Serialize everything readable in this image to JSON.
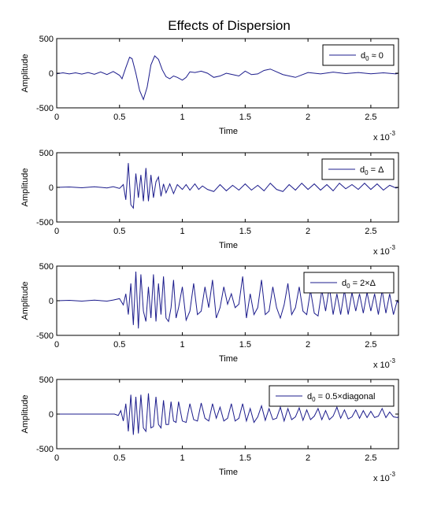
{
  "title": "Effects of Dispersion",
  "colors": {
    "line": "#1c1c8c",
    "axes": "#000000",
    "background": "#ffffff"
  },
  "chart_data": [
    {
      "type": "line",
      "xlabel": "Time",
      "ylabel": "Amplitude",
      "x_multiplier": "x 10",
      "x_exponent": "-3",
      "xlim": [
        0,
        0.00272
      ],
      "ylim": [
        -500,
        500
      ],
      "xtick_labels": [
        "0",
        "0.5",
        "1",
        "1.5",
        "2",
        "2.5"
      ],
      "ytick_labels": [
        "500",
        "0",
        "-500"
      ],
      "legend": {
        "label": "d",
        "sub": "0",
        "rest": " ≈ 0",
        "placement": "top-right"
      },
      "series": [
        {
          "name": "d0 ≈ 0",
          "x": [
            0,
            5e-05,
            0.0001,
            0.00015,
            0.0002,
            0.00025,
            0.0003,
            0.00035,
            0.0004,
            0.00045,
            0.0005,
            0.00052,
            0.00055,
            0.00058,
            0.0006,
            0.00063,
            0.00066,
            0.00069,
            0.00072,
            0.00075,
            0.00078,
            0.00081,
            0.00084,
            0.00087,
            0.0009,
            0.00093,
            0.00096,
            0.001,
            0.00103,
            0.00106,
            0.0011,
            0.00115,
            0.0012,
            0.00125,
            0.0013,
            0.00135,
            0.0014,
            0.00145,
            0.0015,
            0.00155,
            0.0016,
            0.00165,
            0.0017,
            0.0018,
            0.0019,
            0.002,
            0.0021,
            0.0022,
            0.0023,
            0.0024,
            0.0025,
            0.0026,
            0.0027,
            0.00272
          ],
          "y": [
            -8,
            5,
            -10,
            6,
            -12,
            10,
            -15,
            18,
            -20,
            25,
            -30,
            -80,
            80,
            230,
            210,
            0,
            -250,
            -380,
            -200,
            120,
            250,
            200,
            50,
            -50,
            -80,
            -40,
            -60,
            -100,
            -60,
            20,
            10,
            30,
            0,
            -60,
            -40,
            0,
            -20,
            -40,
            30,
            -20,
            -10,
            40,
            60,
            -20,
            -60,
            10,
            -10,
            15,
            -5,
            10,
            -8,
            5,
            -10,
            0
          ]
        }
      ]
    },
    {
      "type": "line",
      "xlabel": "Time",
      "ylabel": "Amplitude",
      "x_multiplier": "x 10",
      "x_exponent": "-3",
      "xlim": [
        0,
        0.00272
      ],
      "ylim": [
        -500,
        500
      ],
      "xtick_labels": [
        "0",
        "0.5",
        "1",
        "1.5",
        "2",
        "2.5"
      ],
      "ytick_labels": [
        "500",
        "0",
        "-500"
      ],
      "legend": {
        "label": "d",
        "sub": "0",
        "rest": " = Δ",
        "placement": "top-right"
      },
      "series": [
        {
          "name": "d0 = Δ",
          "x": [
            0,
            0.0001,
            0.0002,
            0.0003,
            0.0004,
            0.00045,
            0.0005,
            0.00053,
            0.00055,
            0.00057,
            0.00059,
            0.00061,
            0.00063,
            0.00065,
            0.00067,
            0.00069,
            0.00071,
            0.00073,
            0.00075,
            0.00077,
            0.00079,
            0.00081,
            0.00083,
            0.00085,
            0.00087,
            0.0009,
            0.00093,
            0.00096,
            0.001,
            0.00103,
            0.00106,
            0.0011,
            0.00113,
            0.00116,
            0.0012,
            0.00125,
            0.0013,
            0.00135,
            0.0014,
            0.00145,
            0.0015,
            0.00155,
            0.0016,
            0.00165,
            0.0017,
            0.00175,
            0.0018,
            0.00185,
            0.0019,
            0.00195,
            0.002,
            0.00205,
            0.0021,
            0.00215,
            0.0022,
            0.00225,
            0.0023,
            0.00235,
            0.0024,
            0.00245,
            0.0025,
            0.00255,
            0.0026,
            0.00265,
            0.0027,
            0.00272
          ],
          "y": [
            0,
            5,
            -5,
            8,
            -8,
            10,
            -15,
            40,
            -180,
            350,
            -250,
            -300,
            200,
            -150,
            180,
            -200,
            280,
            -200,
            180,
            -150,
            80,
            150,
            -130,
            50,
            -80,
            50,
            -90,
            40,
            -30,
            40,
            -40,
            50,
            -30,
            20,
            -30,
            -60,
            40,
            -50,
            30,
            -40,
            50,
            -40,
            30,
            -50,
            60,
            -30,
            -60,
            40,
            -40,
            60,
            -30,
            50,
            -40,
            40,
            -50,
            60,
            -20,
            40,
            -30,
            60,
            -30,
            50,
            -40,
            30,
            -10,
            0
          ]
        }
      ]
    },
    {
      "type": "line",
      "xlabel": "Time",
      "ylabel": "Amplitude",
      "x_multiplier": "x 10",
      "x_exponent": "-3",
      "xlim": [
        0,
        0.00272
      ],
      "ylim": [
        -500,
        500
      ],
      "xtick_labels": [
        "0",
        "0.5",
        "1",
        "1.5",
        "2",
        "2.5"
      ],
      "ytick_labels": [
        "500",
        "0",
        "-500"
      ],
      "legend": {
        "label": "d",
        "sub": "0",
        "rest": " = 2×Δ",
        "placement": "top-right"
      },
      "series": [
        {
          "name": "d0 = 2×Δ",
          "x": [
            0,
            0.0001,
            0.0002,
            0.0003,
            0.0004,
            0.00045,
            0.0005,
            0.00053,
            0.00055,
            0.00057,
            0.00059,
            0.00061,
            0.00063,
            0.00065,
            0.00067,
            0.00069,
            0.00071,
            0.00073,
            0.00075,
            0.00077,
            0.00079,
            0.00081,
            0.00083,
            0.00085,
            0.00087,
            0.00089,
            0.00091,
            0.00093,
            0.00095,
            0.00097,
            0.001,
            0.00103,
            0.00106,
            0.00109,
            0.00112,
            0.00115,
            0.00118,
            0.00121,
            0.00124,
            0.00127,
            0.0013,
            0.00133,
            0.00136,
            0.00139,
            0.00142,
            0.00145,
            0.00148,
            0.00151,
            0.00154,
            0.00157,
            0.0016,
            0.00163,
            0.00166,
            0.00169,
            0.00172,
            0.00175,
            0.00178,
            0.00181,
            0.00184,
            0.00187,
            0.0019,
            0.00193,
            0.00196,
            0.00199,
            0.00202,
            0.00205,
            0.00208,
            0.00211,
            0.00214,
            0.00217,
            0.0022,
            0.00223,
            0.00226,
            0.00229,
            0.00232,
            0.00235,
            0.00238,
            0.00241,
            0.00244,
            0.00247,
            0.0025,
            0.00253,
            0.00256,
            0.00259,
            0.00262,
            0.00265,
            0.00268,
            0.00271,
            0.00272
          ],
          "y": [
            0,
            5,
            -5,
            8,
            -6,
            10,
            30,
            -60,
            100,
            -200,
            250,
            -350,
            420,
            -400,
            380,
            -150,
            -300,
            200,
            -250,
            380,
            -300,
            250,
            -200,
            350,
            -250,
            -300,
            -100,
            300,
            -250,
            -100,
            200,
            -280,
            -150,
            250,
            -200,
            -150,
            200,
            -100,
            300,
            -250,
            -100,
            200,
            -50,
            100,
            -100,
            -50,
            350,
            -250,
            100,
            -200,
            -100,
            300,
            -200,
            -150,
            200,
            -100,
            -250,
            -60,
            250,
            -200,
            -100,
            200,
            -150,
            -200,
            150,
            -180,
            -220,
            150,
            -150,
            200,
            -200,
            100,
            -200,
            150,
            -200,
            120,
            -150,
            100,
            -180,
            120,
            -150,
            100,
            -200,
            150,
            -180,
            100,
            -200,
            0,
            -40
          ]
        }
      ]
    },
    {
      "type": "line",
      "xlabel": "Time",
      "ylabel": "Amplitude",
      "x_multiplier": "x 10",
      "x_exponent": "-3",
      "xlim": [
        0,
        0.00272
      ],
      "ylim": [
        -500,
        500
      ],
      "xtick_labels": [
        "0",
        "0.5",
        "1",
        "1.5",
        "2",
        "2.5"
      ],
      "ytick_labels": [
        "500",
        "0",
        "-500"
      ],
      "legend": {
        "label": "d",
        "sub": "0",
        "rest": " = 0.5×diagonal",
        "placement": "top-right"
      },
      "series": [
        {
          "name": "d0 = 0.5×diagonal",
          "x": [
            0,
            0.0001,
            0.0002,
            0.0003,
            0.0004,
            0.00046,
            0.00049,
            0.00051,
            0.00053,
            0.00055,
            0.00057,
            0.00059,
            0.00061,
            0.00063,
            0.00065,
            0.00067,
            0.00069,
            0.00071,
            0.00073,
            0.00075,
            0.00077,
            0.00079,
            0.00081,
            0.00083,
            0.00085,
            0.00087,
            0.00089,
            0.00091,
            0.00093,
            0.00095,
            0.00097,
            0.001,
            0.00103,
            0.00106,
            0.00109,
            0.00112,
            0.00115,
            0.00118,
            0.00121,
            0.00124,
            0.00127,
            0.0013,
            0.00133,
            0.00136,
            0.00139,
            0.00142,
            0.00145,
            0.00148,
            0.00151,
            0.00154,
            0.00157,
            0.0016,
            0.00163,
            0.00166,
            0.00169,
            0.00172,
            0.00175,
            0.00178,
            0.00181,
            0.00184,
            0.00187,
            0.0019,
            0.00193,
            0.00196,
            0.00199,
            0.00202,
            0.00205,
            0.00208,
            0.00211,
            0.00214,
            0.00217,
            0.0022,
            0.00223,
            0.00226,
            0.00229,
            0.00232,
            0.00235,
            0.00238,
            0.00241,
            0.00244,
            0.00247,
            0.0025,
            0.00253,
            0.00256,
            0.00259,
            0.00262,
            0.00265,
            0.00268,
            0.00271,
            0.00272
          ],
          "y": [
            0,
            0,
            0,
            0,
            0,
            0,
            -20,
            50,
            -100,
            150,
            -250,
            280,
            -300,
            250,
            -280,
            280,
            -200,
            -250,
            300,
            -200,
            -180,
            250,
            -150,
            -200,
            200,
            -150,
            -150,
            180,
            -100,
            -120,
            180,
            -100,
            -120,
            150,
            -80,
            -100,
            160,
            -60,
            -100,
            150,
            -60,
            100,
            -100,
            -60,
            150,
            -100,
            -60,
            150,
            -100,
            80,
            -120,
            -40,
            120,
            -90,
            80,
            -80,
            -60,
            100,
            -100,
            80,
            -80,
            -40,
            90,
            -90,
            60,
            -80,
            -30,
            80,
            -80,
            50,
            -80,
            -30,
            100,
            -60,
            60,
            -70,
            -40,
            60,
            -60,
            50,
            -50,
            40,
            -50,
            -30,
            80,
            -50,
            30,
            -40,
            -50,
            -40
          ]
        }
      ]
    }
  ]
}
